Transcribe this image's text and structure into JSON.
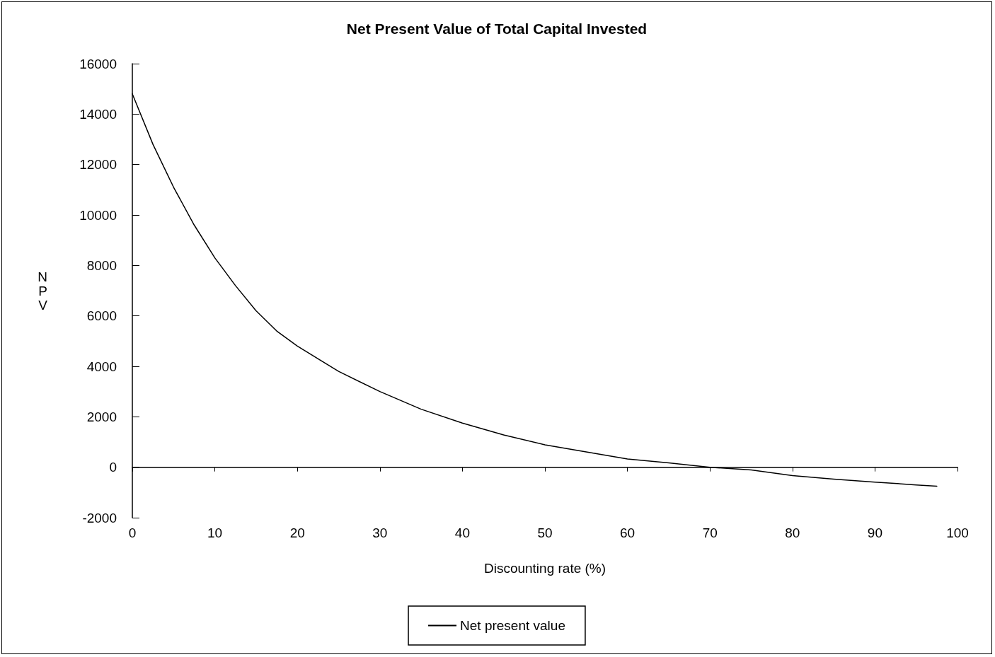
{
  "chart_data": {
    "type": "line",
    "title": "Net Present Value of Total Capital Invested",
    "xlabel": "Discounting rate (%)",
    "ylabel": "NPV",
    "x": [
      0,
      2.5,
      5,
      7.5,
      10,
      12.5,
      15,
      17.5,
      20,
      25,
      30,
      35,
      40,
      45,
      50,
      55,
      60,
      65,
      70,
      75,
      80,
      85,
      90,
      95,
      97.5
    ],
    "series": [
      {
        "name": "Net present value",
        "color": "#000000",
        "values": [
          14800,
          12800,
          11100,
          9600,
          8300,
          7200,
          6200,
          5400,
          4800,
          3800,
          3000,
          2300,
          1750,
          1280,
          890,
          610,
          330,
          170,
          0,
          -110,
          -330,
          -470,
          -590,
          -700,
          -750
        ]
      }
    ],
    "xlim": [
      0,
      100
    ],
    "xticks": [
      0,
      10,
      20,
      30,
      40,
      50,
      60,
      70,
      80,
      90,
      100
    ],
    "ylim": [
      -2000,
      16000
    ],
    "yticks": [
      -2000,
      0,
      2000,
      4000,
      6000,
      8000,
      10000,
      12000,
      14000,
      16000
    ],
    "legend": "bottom",
    "marker": "none",
    "line_style": "solid"
  }
}
